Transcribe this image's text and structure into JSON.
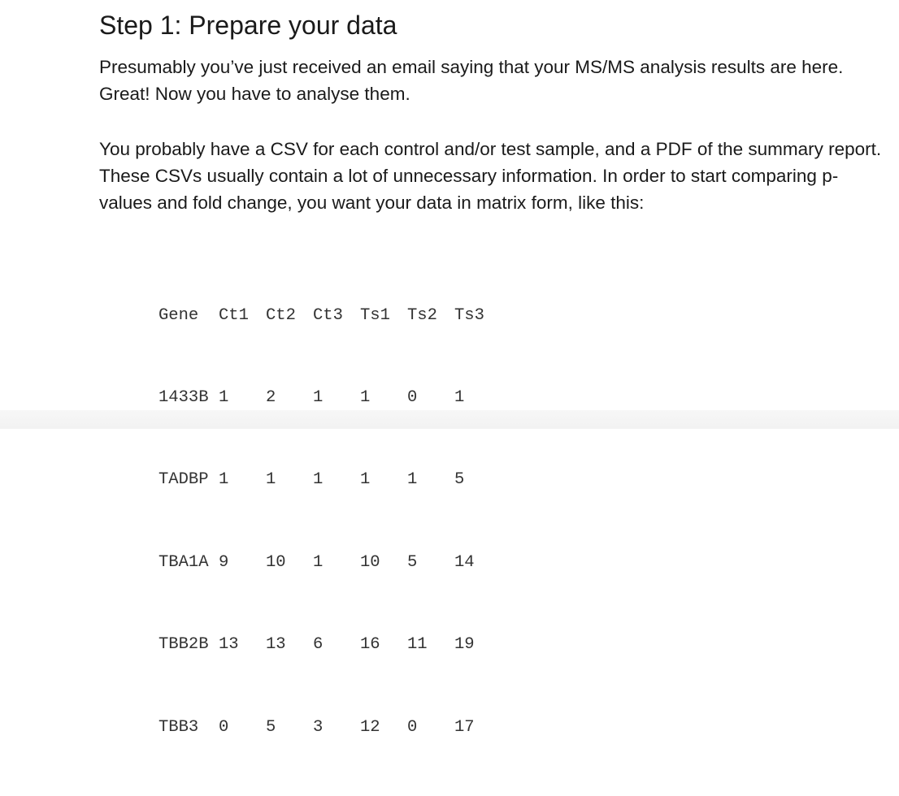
{
  "heading": "Step 1: Prepare your data",
  "paragraphs": [
    "Presumably you’ve just received an email saying that your MS/MS analysis results are here. Great! Now you have to analyse them.",
    "You probably have a CSV for each control and/or test sample, and a PDF of the summary report. These CSVs usually contain a lot of unnecessary information. In order to start comparing p-values and fold change, you want your data in matrix form, like this:"
  ],
  "matrix": {
    "header": [
      "Gene",
      "Ct1",
      "Ct2",
      "Ct3",
      "Ts1",
      "Ts2",
      "Ts3"
    ],
    "rows": [
      [
        "1433B",
        "1",
        "2",
        "1",
        "1",
        "0",
        "1"
      ],
      [
        "TADBP",
        "1",
        "1",
        "1",
        "1",
        "1",
        "5"
      ],
      [
        "TBA1A",
        "9",
        "10",
        "1",
        "10",
        "5",
        "14"
      ],
      [
        "TBB2B",
        "13",
        "13",
        "6",
        "16",
        "11",
        "19"
      ],
      [
        "TBB3",
        "0",
        "5",
        "3",
        "12",
        "0",
        "17"
      ]
    ]
  }
}
